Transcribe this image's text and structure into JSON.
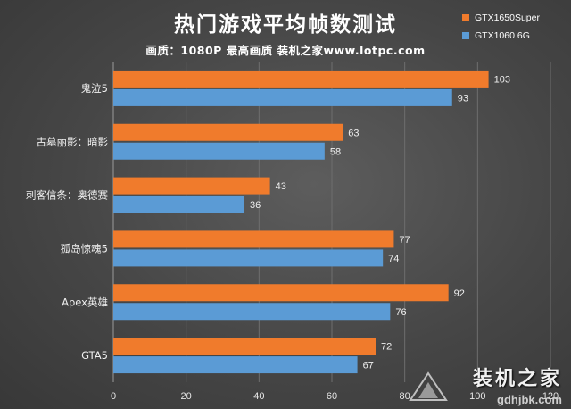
{
  "chart_data": {
    "type": "bar",
    "orientation": "horizontal",
    "title": "热门游戏平均帧数测试",
    "subtitle": "画质：1080P 最高画质 装机之家www.lotpc.com",
    "categories": [
      "鬼泣5",
      "古墓丽影：暗影",
      "刺客信条：奥德赛",
      "孤岛惊魂5",
      "Apex英雄",
      "GTA5"
    ],
    "series": [
      {
        "name": "GTX1650Super",
        "color": "#f07b2c",
        "values": [
          103,
          63,
          43,
          77,
          92,
          72
        ]
      },
      {
        "name": "GTX1060 6G",
        "color": "#5b9bd5",
        "values": [
          93,
          58,
          36,
          74,
          76,
          67
        ]
      }
    ],
    "xlim": [
      0,
      120
    ],
    "xticks": [
      0,
      20,
      40,
      60,
      80,
      100,
      120
    ],
    "grid": true,
    "legend_position": "top-right"
  },
  "watermark": {
    "text": "装机之家",
    "url": "gdhjbk.com"
  }
}
